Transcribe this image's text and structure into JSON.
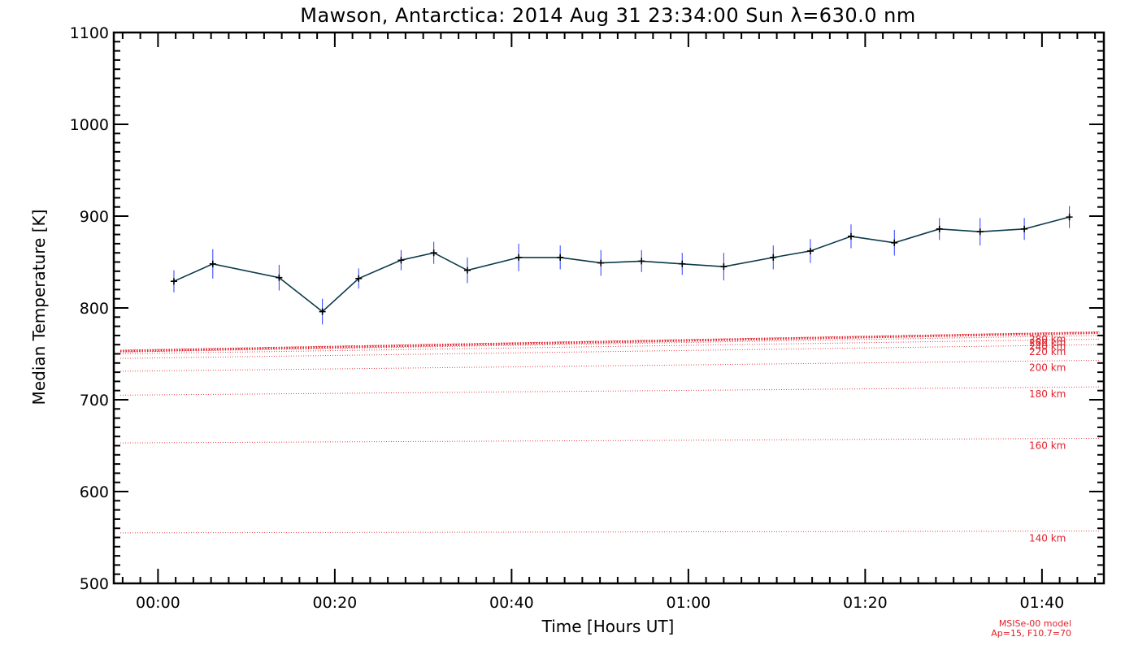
{
  "chart_data": {
    "type": "line",
    "title": "Mawson, Antarctica: 2014 Aug 31 23:34:00 Sun λ=630.0 nm",
    "xlabel": "Time [Hours UT]",
    "ylabel": "Median Temperature [K]",
    "xlim": [
      -5,
      107
    ],
    "ylim": [
      500,
      1100
    ],
    "yticks": [
      {
        "value": 500,
        "label": "500"
      },
      {
        "value": 600,
        "label": "600"
      },
      {
        "value": 700,
        "label": "700"
      },
      {
        "value": 800,
        "label": "800"
      },
      {
        "value": 900,
        "label": "900"
      },
      {
        "value": 1000,
        "label": "1000"
      },
      {
        "value": 1100,
        "label": "1100"
      }
    ],
    "xticks": [
      {
        "value": 0,
        "label": "00:00"
      },
      {
        "value": 20,
        "label": "00:20"
      },
      {
        "value": 40,
        "label": "00:40"
      },
      {
        "value": 60,
        "label": "01:00"
      },
      {
        "value": 80,
        "label": "01:20"
      },
      {
        "value": 100,
        "label": "01:40"
      }
    ],
    "series": [
      {
        "name": "Median Temperature",
        "color": "#0a3a4a",
        "error_color": "#2a3cff",
        "points": [
          {
            "x": 1.8,
            "y": 829,
            "err": 12
          },
          {
            "x": 6.2,
            "y": 848,
            "err": 16
          },
          {
            "x": 13.7,
            "y": 833,
            "err": 14
          },
          {
            "x": 18.6,
            "y": 796,
            "err": 14
          },
          {
            "x": 22.7,
            "y": 832,
            "err": 11
          },
          {
            "x": 27.5,
            "y": 852,
            "err": 11
          },
          {
            "x": 31.2,
            "y": 860,
            "err": 12
          },
          {
            "x": 35.0,
            "y": 841,
            "err": 14
          },
          {
            "x": 40.8,
            "y": 855,
            "err": 15
          },
          {
            "x": 45.5,
            "y": 855,
            "err": 13
          },
          {
            "x": 50.1,
            "y": 849,
            "err": 14
          },
          {
            "x": 54.7,
            "y": 851,
            "err": 12
          },
          {
            "x": 59.3,
            "y": 848,
            "err": 12
          },
          {
            "x": 64.0,
            "y": 845,
            "err": 15
          },
          {
            "x": 69.6,
            "y": 855,
            "err": 13
          },
          {
            "x": 73.8,
            "y": 862,
            "err": 13
          },
          {
            "x": 78.4,
            "y": 878,
            "err": 13
          },
          {
            "x": 83.3,
            "y": 871,
            "err": 14
          },
          {
            "x": 88.4,
            "y": 886,
            "err": 12
          },
          {
            "x": 93.0,
            "y": 883,
            "err": 15
          },
          {
            "x": 98.0,
            "y": 886,
            "err": 12
          },
          {
            "x": 103.1,
            "y": 899,
            "err": 12
          }
        ]
      }
    ],
    "model_lines": [
      {
        "label": "140 km",
        "y_start": 555,
        "y_end": 557,
        "style": "dotted"
      },
      {
        "label": "160 km",
        "y_start": 653,
        "y_end": 658,
        "style": "dotted"
      },
      {
        "label": "180 km",
        "y_start": 705,
        "y_end": 714,
        "style": "dotted"
      },
      {
        "label": "200 km",
        "y_start": 731,
        "y_end": 743,
        "style": "dotted"
      },
      {
        "label": "220 km",
        "y_start": 745,
        "y_end": 760,
        "style": "dotted"
      },
      {
        "label": "240 km",
        "y_start": 750,
        "y_end": 766,
        "style": "dotted"
      },
      {
        "label": "260 km",
        "y_start": 752,
        "y_end": 770,
        "style": "dotted"
      },
      {
        "label": "280 km",
        "y_start": 754,
        "y_end": 774,
        "style": "dotted"
      },
      {
        "label": "",
        "y_start": 753,
        "y_end": 773,
        "style": "heavy"
      }
    ],
    "model_color": "#e0202a",
    "model_note": [
      "MSISe-00 model",
      "Ap=15, F10.7=70"
    ]
  }
}
